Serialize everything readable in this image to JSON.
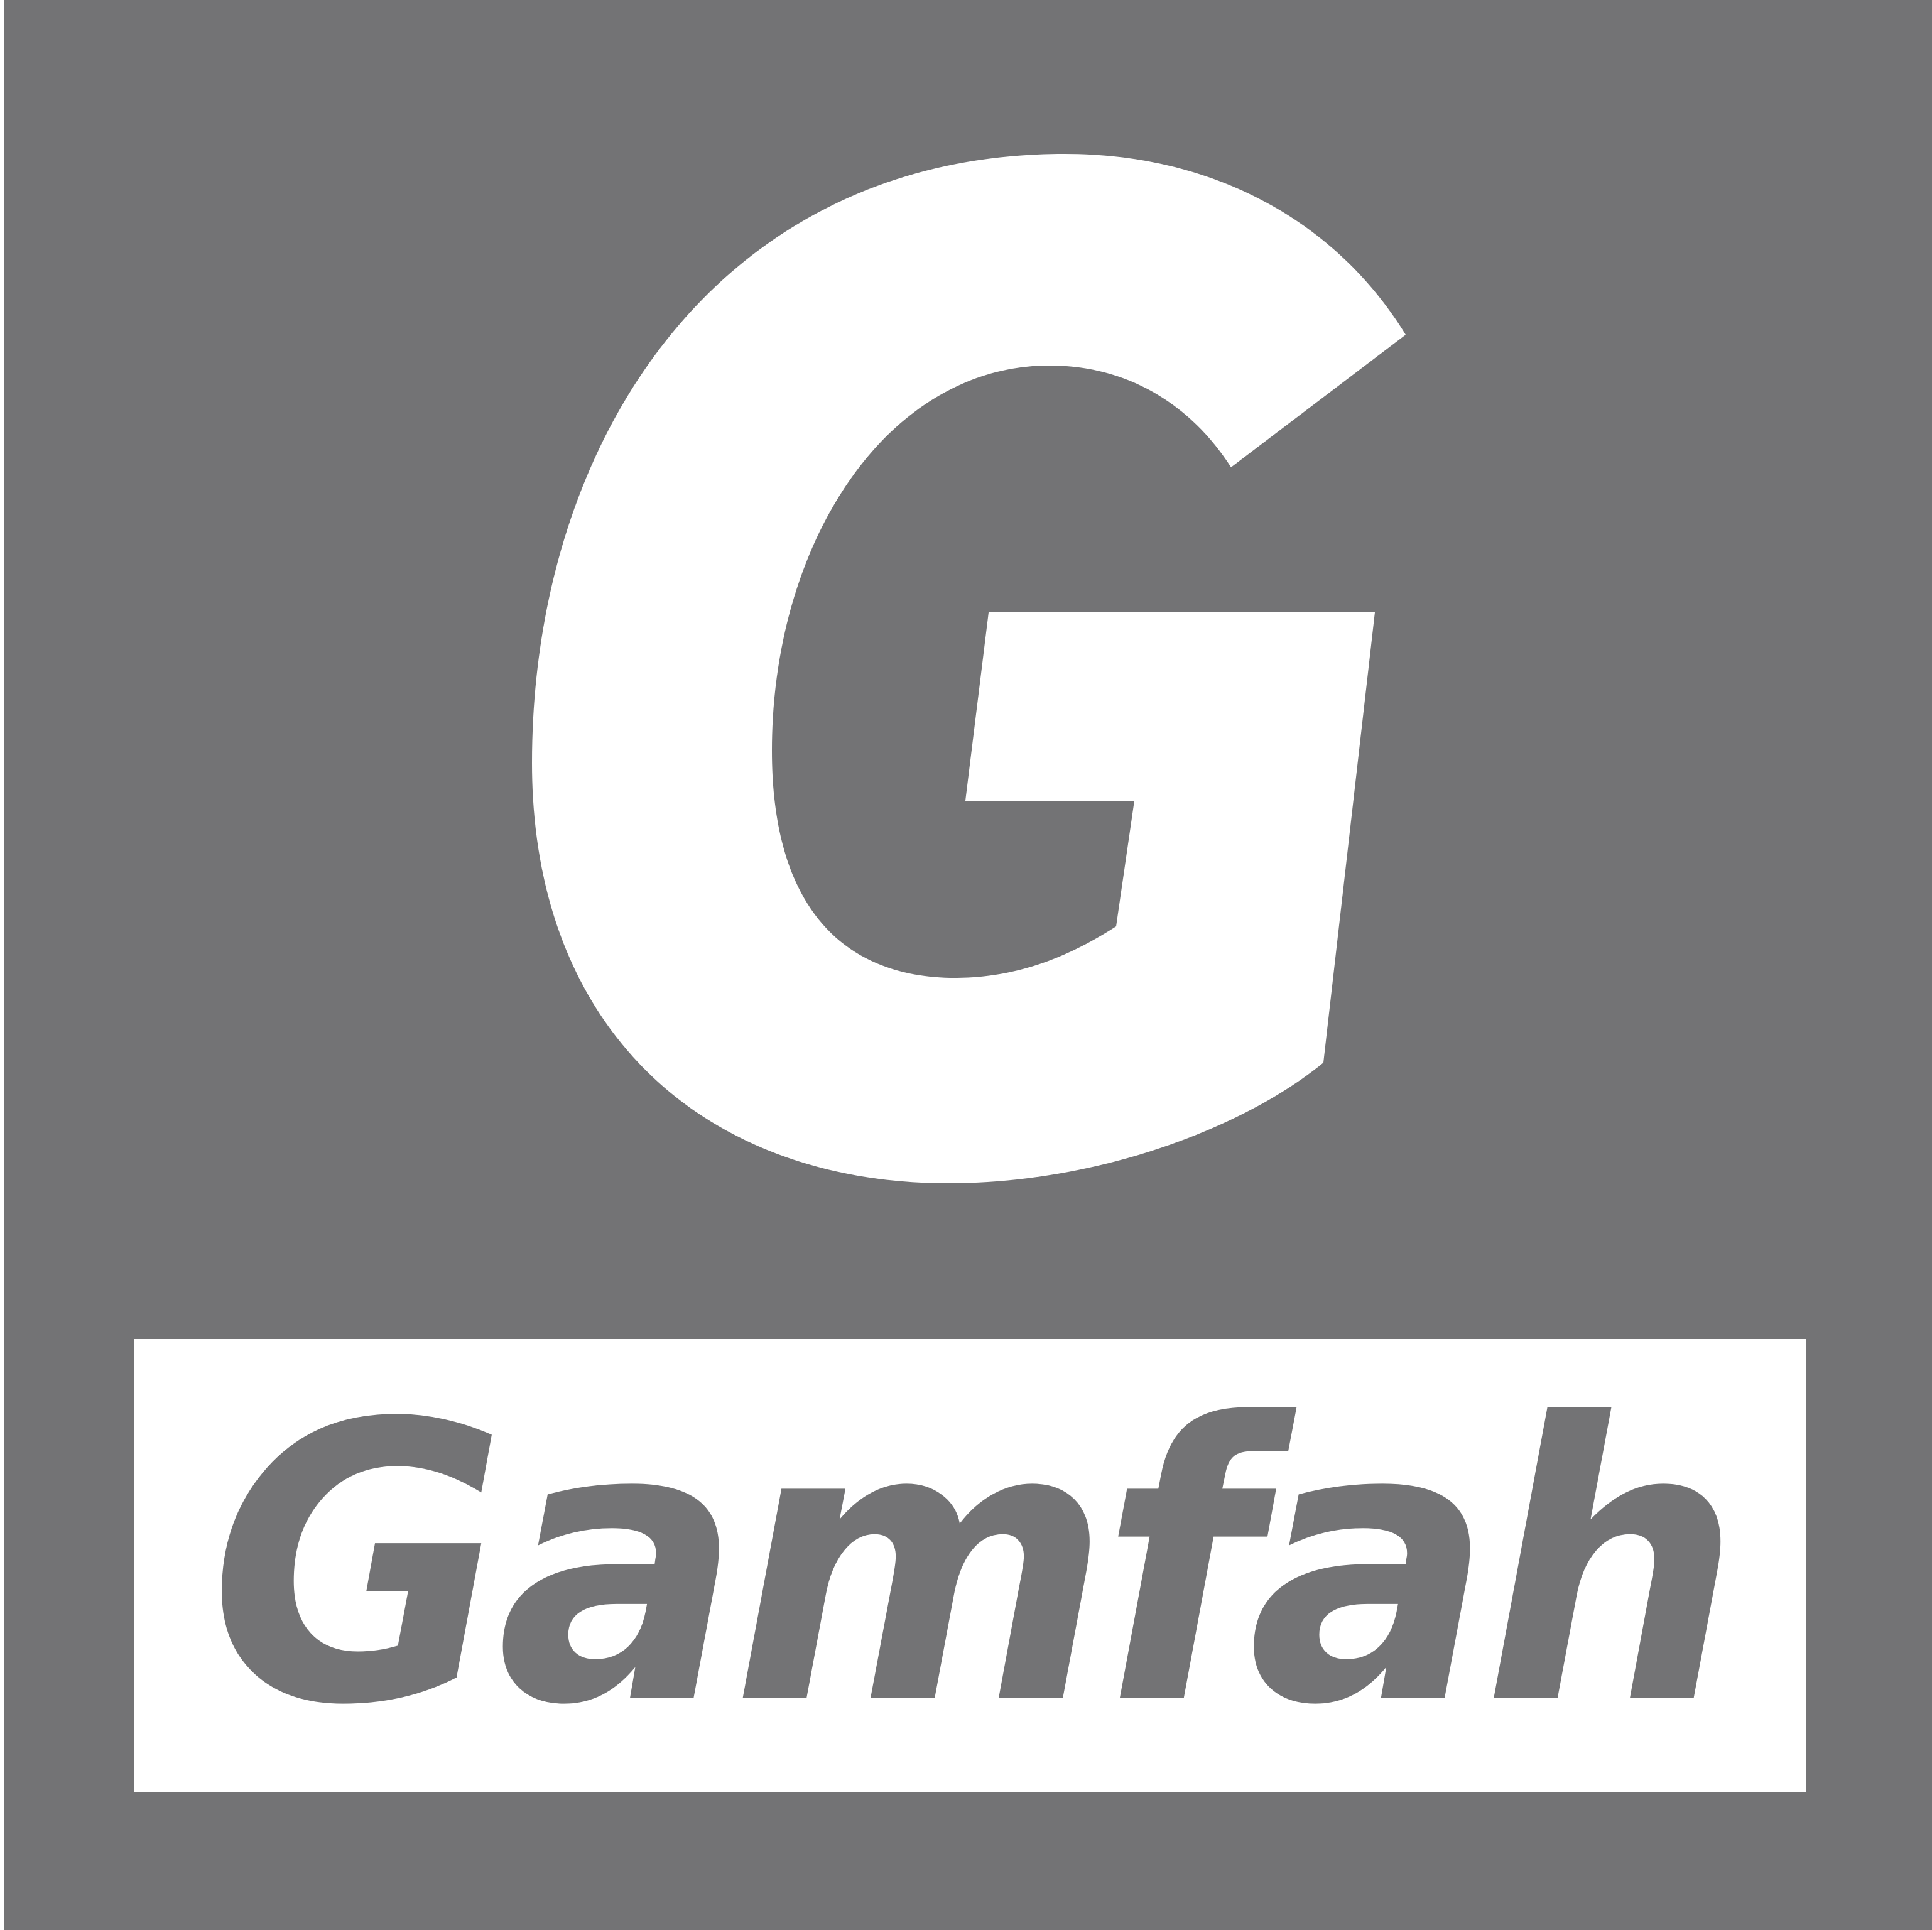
{
  "logo": {
    "wordmark": "Gamfah",
    "emblem_letter": "G",
    "colors": {
      "background": "#737375",
      "foreground": "#ffffff"
    }
  }
}
